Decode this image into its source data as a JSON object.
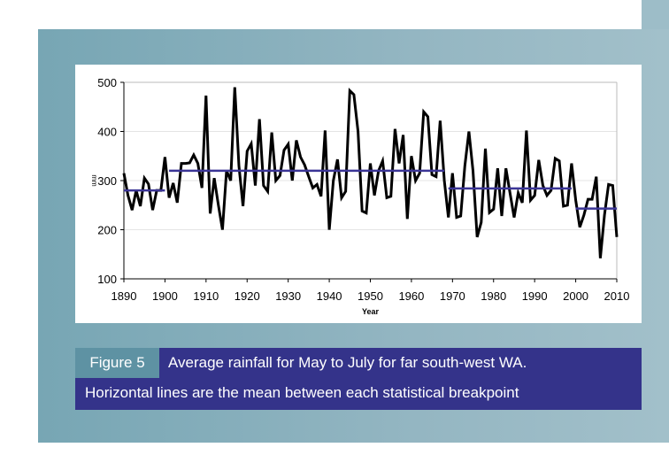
{
  "caption": {
    "figure_label": "Figure 5",
    "line1": "Average rainfall for May to July for far south-west WA.",
    "line2": "Horizontal lines are the mean between each statistical breakpoint"
  },
  "colors": {
    "series": "#000000",
    "mean_lines": "#3b3596",
    "caption_bg": "#34338a",
    "figure_label_bg": "#5e92a3"
  },
  "chart_data": {
    "type": "line",
    "title": "",
    "xlabel": "Year",
    "ylabel": "mm",
    "xlim": [
      1890,
      2010
    ],
    "ylim": [
      100,
      500
    ],
    "x_ticks": [
      "1890",
      "1900",
      "1910",
      "1920",
      "1930",
      "1940",
      "1950",
      "1960",
      "1970",
      "1980",
      "1990",
      "2000",
      "2010"
    ],
    "y_ticks": [
      "100",
      "200",
      "300",
      "400",
      "500"
    ],
    "grid": "horizontal",
    "x_start": 1890,
    "values": [
      315,
      270,
      240,
      280,
      248,
      305,
      293,
      240,
      280,
      280,
      348,
      265,
      295,
      255,
      335,
      335,
      336,
      352,
      335,
      285,
      473,
      233,
      305,
      250,
      200,
      320,
      300,
      490,
      330,
      248,
      360,
      375,
      290,
      425,
      290,
      278,
      398,
      300,
      310,
      362,
      374,
      300,
      382,
      348,
      332,
      308,
      285,
      292,
      268,
      402,
      200,
      300,
      343,
      265,
      278,
      483,
      475,
      400,
      238,
      234,
      335,
      270,
      320,
      340,
      265,
      268,
      405,
      335,
      393,
      222,
      350,
      300,
      315,
      440,
      430,
      312,
      308,
      422,
      300,
      225,
      315,
      225,
      228,
      330,
      400,
      320,
      185,
      215,
      365,
      235,
      242,
      325,
      228,
      325,
      275,
      225,
      275,
      255,
      402,
      260,
      270,
      342,
      290,
      270,
      280,
      345,
      340,
      248,
      250,
      335,
      260,
      205,
      230,
      262,
      262,
      308,
      142,
      230,
      292,
      290,
      185
    ],
    "mean_segments": [
      {
        "from": 1890,
        "to": 1900,
        "value": 280
      },
      {
        "from": 1901,
        "to": 1968,
        "value": 320
      },
      {
        "from": 1969,
        "to": 1999,
        "value": 284
      },
      {
        "from": 2000,
        "to": 2010,
        "value": 243
      }
    ]
  }
}
